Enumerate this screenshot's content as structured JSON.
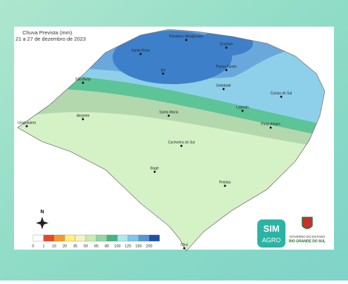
{
  "title": "Chuva Prevista (mm)",
  "subtitle": "21 a 27 de dezembro de 2023",
  "north": "N",
  "legend": {
    "ticks": [
      0,
      1,
      10,
      20,
      35,
      50,
      65,
      80,
      100,
      125,
      150,
      200
    ],
    "colors": [
      "#ffffff",
      "#e8462a",
      "#f49b2c",
      "#fff07a",
      "#f3f5c0",
      "#c8ecb2",
      "#8fd9a0",
      "#3fb880",
      "#aee8f2",
      "#7fc5ee",
      "#4f98dc",
      "#1f4ea8"
    ]
  },
  "cities": [
    {
      "label": "Santa Rosa"
    },
    {
      "label": "Frederico Westphalen"
    },
    {
      "label": "Erechim"
    },
    {
      "label": "Passo Fundo"
    },
    {
      "label": "Ijuí"
    },
    {
      "label": "Soledade"
    },
    {
      "label": "Caxias do Sul"
    },
    {
      "label": "Lajeado"
    },
    {
      "label": "São Borja"
    },
    {
      "label": "Santa Maria"
    },
    {
      "label": "Porto Alegre"
    },
    {
      "label": "Alegrete"
    },
    {
      "label": "Uruguaiana"
    },
    {
      "label": "Cachoeira do Sul"
    },
    {
      "label": "Bagé"
    },
    {
      "label": "Pelotas"
    },
    {
      "label": "Chuí"
    }
  ],
  "logo": {
    "sim": "SIM",
    "agro": "AGRO"
  },
  "government": {
    "line1": "GOVERNO DO ESTADO",
    "line2": "RIO GRANDE DO SUL"
  }
}
